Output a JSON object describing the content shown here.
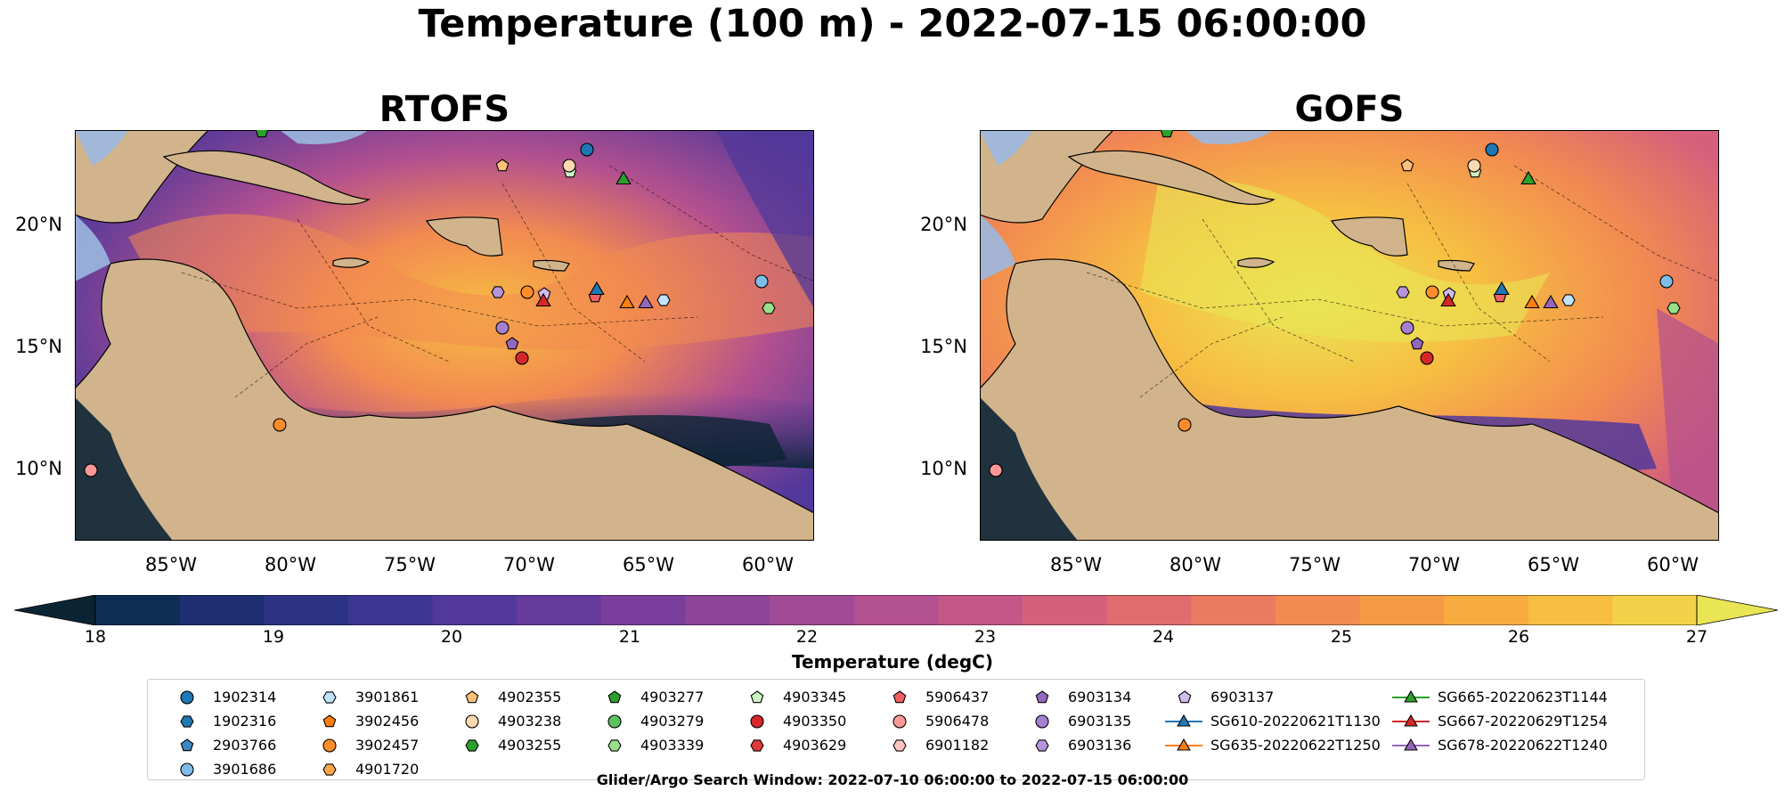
{
  "title": "Temperature (100 m) - 2022-07-15 06:00:00",
  "panels": [
    {
      "title": "RTOFS"
    },
    {
      "title": "GOFS"
    }
  ],
  "axes": {
    "lat_ticks": [
      "20°N",
      "15°N",
      "10°N"
    ],
    "lon_ticks": [
      "85°W",
      "80°W",
      "75°W",
      "70°W",
      "65°W",
      "60°W"
    ]
  },
  "colorbar": {
    "label": "Temperature (degC)",
    "ticks": [
      "18",
      "19",
      "20",
      "21",
      "22",
      "23",
      "24",
      "25",
      "26",
      "27"
    ],
    "range": [
      18,
      27
    ],
    "colors": [
      "#0b2434",
      "#0f2d55",
      "#1d2f70",
      "#2c3385",
      "#3d3693",
      "#52389a",
      "#653b9c",
      "#7a3f9c",
      "#8d4499",
      "#a04a95",
      "#b3508f",
      "#c45787",
      "#d4607c",
      "#e06c6f",
      "#ea7a60",
      "#f28a51",
      "#f69a45",
      "#f8ab3f",
      "#f7be42",
      "#f3d24a",
      "#eae555"
    ],
    "extend": "both"
  },
  "legend": {
    "items": [
      {
        "label": "1902314",
        "marker": "circle",
        "color": "#1f77b4"
      },
      {
        "label": "1902316",
        "marker": "hexagon",
        "color": "#1f77b4"
      },
      {
        "label": "2903766",
        "marker": "pentagon",
        "color": "#3a87c4"
      },
      {
        "label": "3901686",
        "marker": "circle",
        "color": "#7fbde8"
      },
      {
        "label": "3901861",
        "marker": "hexagon",
        "color": "#bfe3f9"
      },
      {
        "label": "3902456",
        "marker": "pentagon",
        "color": "#ff7f0e"
      },
      {
        "label": "3902457",
        "marker": "circle",
        "color": "#ff8c2a"
      },
      {
        "label": "4901720",
        "marker": "hexagon",
        "color": "#ffa64d"
      },
      {
        "label": "4902355",
        "marker": "pentagon",
        "color": "#ffc07a"
      },
      {
        "label": "4903238",
        "marker": "circle",
        "color": "#ffd8b0"
      },
      {
        "label": "4903255",
        "marker": "hexagon",
        "color": "#2ca02c"
      },
      {
        "label": "4903277",
        "marker": "pentagon",
        "color": "#2ca02c"
      },
      {
        "label": "4903279",
        "marker": "circle",
        "color": "#5cc25c"
      },
      {
        "label": "4903339",
        "marker": "hexagon",
        "color": "#98df8a"
      },
      {
        "label": "4903345",
        "marker": "pentagon",
        "color": "#ccf2c4"
      },
      {
        "label": "4903350",
        "marker": "circle",
        "color": "#d62728"
      },
      {
        "label": "4903629",
        "marker": "hexagon",
        "color": "#e0393a"
      },
      {
        "label": "5906437",
        "marker": "pentagon",
        "color": "#f06060"
      },
      {
        "label": "5906478",
        "marker": "circle",
        "color": "#ff9896"
      },
      {
        "label": "6901182",
        "marker": "hexagon",
        "color": "#ffc4c2"
      },
      {
        "label": "6903134",
        "marker": "pentagon",
        "color": "#9467bd"
      },
      {
        "label": "6903135",
        "marker": "circle",
        "color": "#a57fd0"
      },
      {
        "label": "6903136",
        "marker": "hexagon",
        "color": "#b794dc"
      },
      {
        "label": "6903137",
        "marker": "pentagon",
        "color": "#d2bbee"
      },
      {
        "label": "SG610-20220621T1130",
        "marker": "triangle-line",
        "color": "#1f77b4"
      },
      {
        "label": "SG635-20220622T1250",
        "marker": "triangle-line",
        "color": "#ff7f0e"
      },
      {
        "label": "SG665-20220623T1144",
        "marker": "triangle-line",
        "color": "#2ca02c"
      },
      {
        "label": "SG667-20220629T1254",
        "marker": "triangle-line",
        "color": "#d62728"
      },
      {
        "label": "SG678-20220622T1240",
        "marker": "triangle-line",
        "color": "#9467bd"
      }
    ]
  },
  "footer": "Glider/Argo Search Window: 2022-07-10 06:00:00 to 2022-07-15 06:00:00",
  "colors": {
    "land": "#d2b48c",
    "shelf": "#9bb8e0",
    "border": "#000000"
  }
}
